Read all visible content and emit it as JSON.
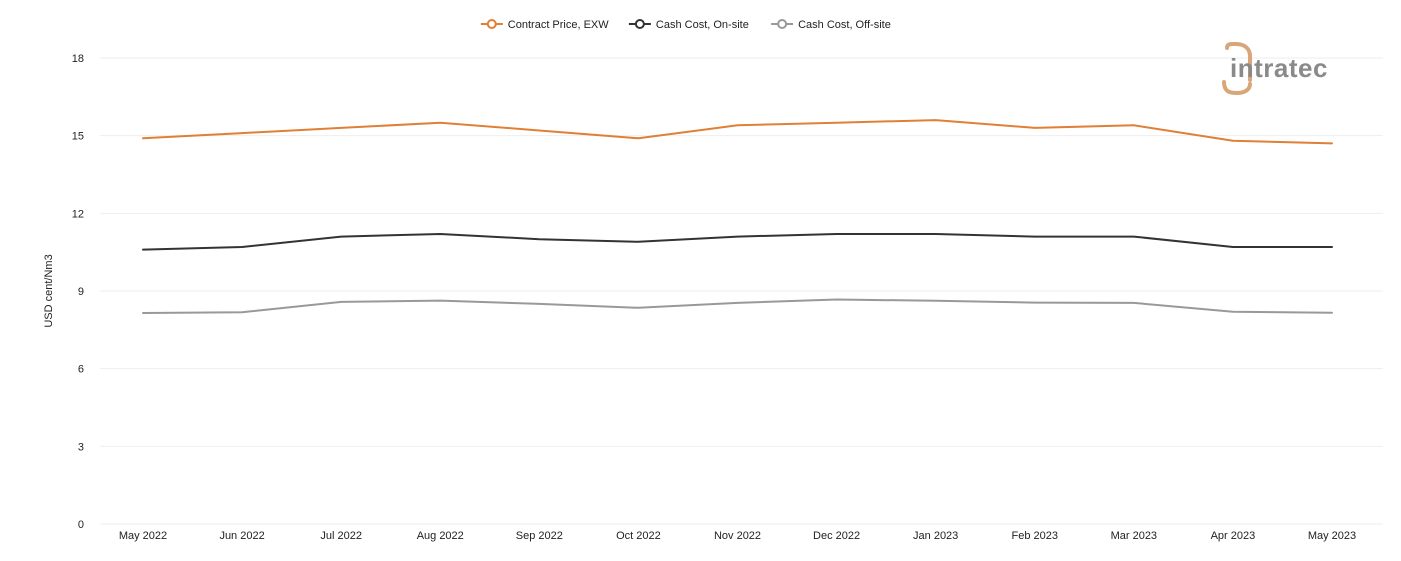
{
  "chart_data": {
    "type": "line",
    "categories": [
      "May 2022",
      "Jun 2022",
      "Jul 2022",
      "Aug 2022",
      "Sep 2022",
      "Oct 2022",
      "Nov 2022",
      "Dec 2022",
      "Jan 2023",
      "Feb 2023",
      "Mar 2023",
      "Apr 2023",
      "May 2023"
    ],
    "series": [
      {
        "name": "Contract Price, EXW",
        "color": "#e07f35",
        "values": [
          14.9,
          15.1,
          15.3,
          15.5,
          15.2,
          14.9,
          15.4,
          15.5,
          15.6,
          15.3,
          15.4,
          14.8,
          14.7
        ]
      },
      {
        "name": "Cash Cost, On-site",
        "color": "#333333",
        "values": [
          10.6,
          10.7,
          11.1,
          11.2,
          11.0,
          10.9,
          11.1,
          11.2,
          11.2,
          11.1,
          11.1,
          10.7,
          10.7
        ]
      },
      {
        "name": "Cash Cost, Off-site",
        "color": "#999999",
        "values": [
          8.15,
          8.18,
          8.58,
          8.63,
          8.5,
          8.35,
          8.54,
          8.67,
          8.62,
          8.55,
          8.54,
          8.2,
          8.16
        ]
      }
    ],
    "ylabel": "USD cent/Nm3",
    "xlabel": "",
    "ylim": [
      0,
      18
    ],
    "yticks": [
      0,
      3,
      6,
      9,
      12,
      15,
      18
    ],
    "grid": true,
    "legend_position": "top-center"
  },
  "logo": {
    "text": "intratec",
    "brand_color": "#d9a679"
  }
}
